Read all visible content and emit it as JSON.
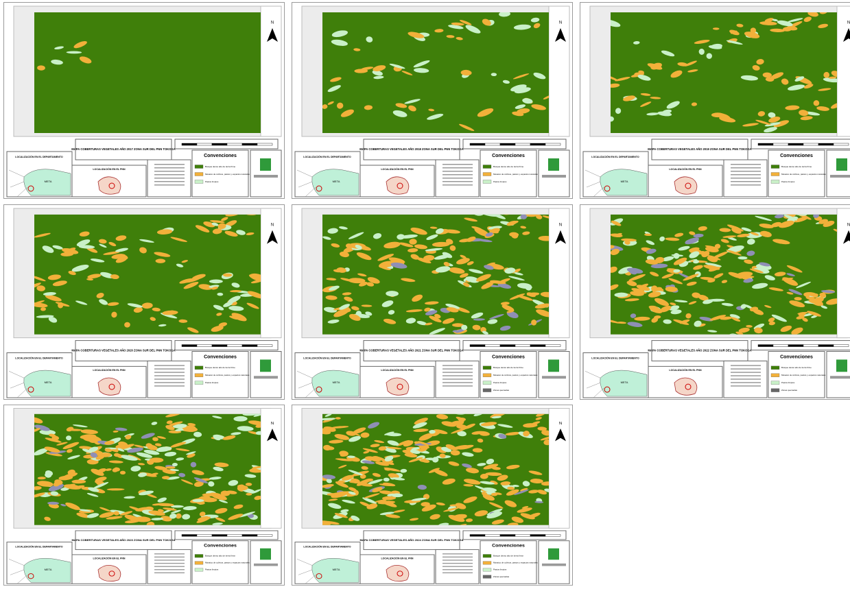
{
  "maps": [
    {
      "title": "MAPA COBERTURAS VEGETALES AÑO 2017 ZONA SUR DEL PNN TOKOGA",
      "north": "N",
      "legend_title": "Convenciones",
      "legend_items": [
        "Bosque denso alto de tierra firme",
        "Mosaico de cultivos, pastos y espacios naturales",
        "Pastos limpios"
      ],
      "location_department": "LOCALIZACIÓN EN EL DEPARTAMENTO",
      "location_park": "LOCALIZACIÓN EN EL PNN",
      "inset_label": "META"
    },
    {
      "title": "MAPA COBERTURAS VEGETALES AÑO 2018 ZONA SUR DEL PNN TOKOGA",
      "north": "N",
      "legend_title": "Convenciones",
      "legend_items": [
        "Bosque denso alto de tierra firme",
        "Mosaico de cultivos, pastos y espacios naturales",
        "Pastos limpios"
      ],
      "location_department": "LOCALIZACIÓN EN EL DEPARTAMENTO",
      "location_park": "LOCALIZACIÓN EN EL PNN",
      "inset_label": "META"
    },
    {
      "title": "MAPA COBERTURAS VEGETALES AÑO 2019 ZONA SUR DEL PNN TOKOGA",
      "north": "N",
      "legend_title": "Convenciones",
      "legend_items": [
        "Bosque denso alto de tierra firme",
        "Mosaico de cultivos, pastos y espacios naturales",
        "Pastos limpios"
      ],
      "location_department": "LOCALIZACIÓN EN EL DEPARTAMENTO",
      "location_park": "LOCALIZACIÓN EN EL PNN",
      "inset_label": "META"
    },
    {
      "title": "MAPA COBERTURAS VEGETALES AÑO 2020 ZONA SUR DEL PNN TOKOGA",
      "north": "N",
      "legend_title": "Convenciones",
      "legend_items": [
        "Bosque denso alto de tierra firme",
        "Mosaico de cultivos, pastos y espacios naturales",
        "Pastos limpios"
      ],
      "location_department": "LOCALIZACIÓN EN EL DEPARTAMENTO",
      "location_park": "LOCALIZACIÓN EN EL PNN",
      "inset_label": "META"
    },
    {
      "title": "MAPA COBERTURAS VEGETALES AÑO 2021 ZONA SUR DEL PNN TOKOGA",
      "north": "N",
      "legend_title": "Convenciones",
      "legend_items": [
        "Bosque denso alto de tierra firme",
        "Mosaico de cultivos, pastos y espacios naturales",
        "Pastos limpios",
        "Zonas quemadas"
      ],
      "location_department": "LOCALIZACIÓN EN EL DEPARTAMENTO",
      "location_park": "LOCALIZACIÓN EN EL PNN",
      "inset_label": "META"
    },
    {
      "title": "MAPA COBERTURAS VEGETALES AÑO 2022 ZONA SUR DEL PNN TOKOGA",
      "north": "N",
      "legend_title": "Convenciones",
      "legend_items": [
        "Bosque denso alto de tierra firme",
        "Mosaico de cultivos, pastos y espacios naturales",
        "Pastos limpios",
        "Zonas quemadas"
      ],
      "location_department": "LOCALIZACIÓN EN EL DEPARTAMENTO",
      "location_park": "LOCALIZACIÓN EN EL PNN",
      "inset_label": "META"
    },
    {
      "title": "MAPA COBERTURAS VEGETALES AÑO 2023 ZONA SUR DEL PNN TOKOGA",
      "north": "N",
      "legend_title": "Convenciones",
      "legend_items": [
        "Bosque denso alto de tierra firme",
        "Mosaico de cultivos, pastos y espacios naturales",
        "Pastos limpios"
      ],
      "location_department": "LOCALIZACIÓN EN EL DEPARTAMENTO",
      "location_park": "LOCALIZACIÓN EN EL PNN",
      "inset_label": "META"
    },
    {
      "title": "MAPA COBERTURAS VEGETALES AÑO 2024 ZONA SUR DEL PNN TOKOGA",
      "north": "N",
      "legend_title": "Convenciones",
      "legend_items": [
        "Bosque denso alto de tierra firme",
        "Mosaico de cultivos, pastos y espacios naturales",
        "Pastos limpios",
        "Zonas quemadas"
      ],
      "location_department": "LOCALIZACIÓN EN EL DEPARTAMENTO",
      "location_park": "LOCALIZACIÓN EN EL PNN",
      "inset_label": "META"
    }
  ]
}
